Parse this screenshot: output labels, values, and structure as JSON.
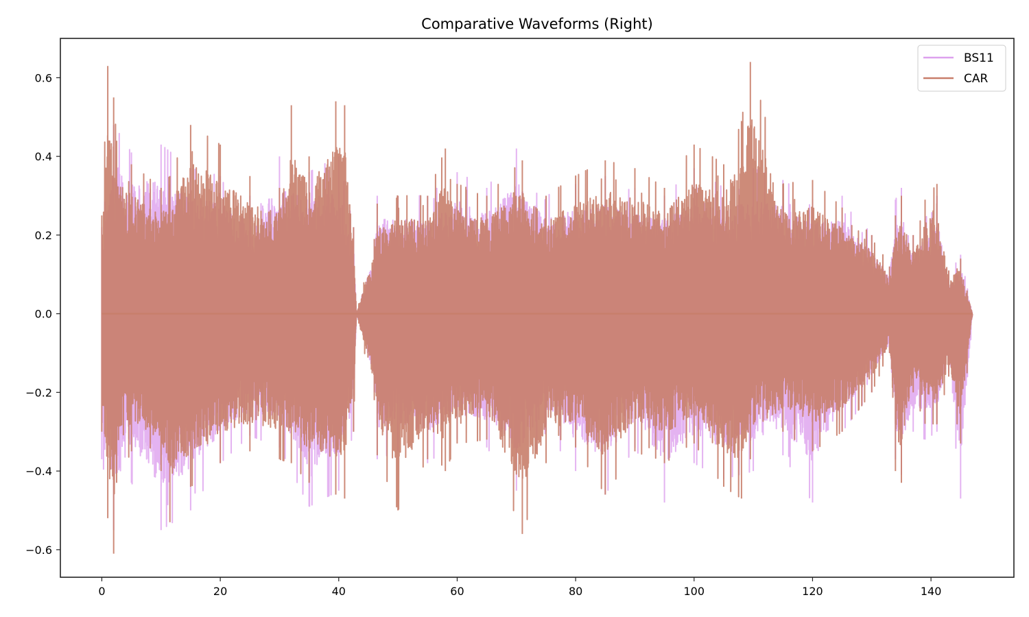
{
  "chart_data": {
    "type": "line",
    "title": "Comparative Waveforms (Right)",
    "xlabel": "",
    "ylabel": "",
    "xlim": [
      -7,
      154
    ],
    "ylim": [
      -0.67,
      0.7
    ],
    "xticks": [
      0,
      20,
      40,
      60,
      80,
      100,
      120,
      140
    ],
    "xtick_labels": [
      "0",
      "20",
      "40",
      "60",
      "80",
      "100",
      "120",
      "140"
    ],
    "yticks": [
      -0.6,
      -0.4,
      -0.2,
      0.0,
      0.2,
      0.4,
      0.6
    ],
    "ytick_labels": [
      "−0.6",
      "−0.4",
      "−0.2",
      "0.0",
      "0.2",
      "0.4",
      "0.6"
    ],
    "grid": false,
    "legend_position": "upper right",
    "series": [
      {
        "name": "BS11",
        "color": "#dda0ee",
        "alpha": 0.8,
        "description": "audio waveform amplitude over time (s), 0 to ~147",
        "envelope": {
          "x": [
            0,
            2,
            5,
            10,
            15,
            20,
            25,
            30,
            35,
            40,
            42.5,
            43,
            46,
            46.5,
            50,
            55,
            60,
            65,
            70,
            75,
            80,
            85,
            90,
            95,
            100,
            105,
            110,
            115,
            120,
            125,
            130,
            133,
            134,
            135,
            137,
            139,
            141,
            143,
            145,
            147
          ],
          "max": [
            0.22,
            0.48,
            0.41,
            0.43,
            0.37,
            0.35,
            0.3,
            0.4,
            0.36,
            0.4,
            0.22,
            0.0,
            0.19,
            0.3,
            0.3,
            0.3,
            0.36,
            0.32,
            0.42,
            0.3,
            0.33,
            0.35,
            0.32,
            0.3,
            0.37,
            0.32,
            0.37,
            0.34,
            0.29,
            0.3,
            0.2,
            0.12,
            0.29,
            0.32,
            0.2,
            0.24,
            0.3,
            0.11,
            0.15,
            0.0
          ],
          "min": [
            -0.37,
            -0.55,
            -0.43,
            -0.55,
            -0.5,
            -0.38,
            -0.31,
            -0.34,
            -0.49,
            -0.45,
            -0.3,
            0.0,
            -0.2,
            -0.37,
            -0.35,
            -0.38,
            -0.32,
            -0.34,
            -0.45,
            -0.3,
            -0.4,
            -0.46,
            -0.34,
            -0.48,
            -0.38,
            -0.42,
            -0.4,
            -0.36,
            -0.48,
            -0.3,
            -0.2,
            -0.1,
            -0.37,
            -0.41,
            -0.3,
            -0.32,
            -0.3,
            -0.15,
            -0.47,
            0.0
          ]
        }
      },
      {
        "name": "CAR",
        "color": "#c87e6a",
        "alpha": 0.9,
        "description": "audio waveform amplitude over time (s), 0 to ~147",
        "envelope": {
          "x": [
            0,
            1,
            2,
            2.5,
            5,
            10,
            11.5,
            15,
            20,
            25,
            30,
            32,
            35,
            39.5,
            41,
            42.5,
            43,
            46,
            46.5,
            50,
            55,
            58,
            60,
            65,
            71,
            75,
            80,
            85,
            90,
            95,
            100,
            105,
            108,
            109.5,
            115,
            120,
            125,
            130,
            133,
            134,
            135,
            137,
            139,
            141,
            143,
            145,
            147
          ],
          "max": [
            0.25,
            0.63,
            0.55,
            0.44,
            0.38,
            0.32,
            0.35,
            0.48,
            0.43,
            0.35,
            0.32,
            0.53,
            0.4,
            0.54,
            0.53,
            0.22,
            0.0,
            0.19,
            0.28,
            0.3,
            0.3,
            0.42,
            0.33,
            0.3,
            0.39,
            0.3,
            0.35,
            0.39,
            0.37,
            0.32,
            0.43,
            0.38,
            0.49,
            0.64,
            0.33,
            0.34,
            0.27,
            0.2,
            0.12,
            0.25,
            0.3,
            0.2,
            0.29,
            0.33,
            0.11,
            0.14,
            0.0
          ],
          "min": [
            -0.3,
            -0.52,
            -0.61,
            -0.43,
            -0.35,
            -0.4,
            -0.53,
            -0.44,
            -0.38,
            -0.35,
            -0.37,
            -0.38,
            -0.43,
            -0.46,
            -0.47,
            -0.3,
            0.0,
            -0.22,
            -0.36,
            -0.5,
            -0.37,
            -0.4,
            -0.33,
            -0.32,
            -0.56,
            -0.38,
            -0.34,
            -0.46,
            -0.35,
            -0.38,
            -0.33,
            -0.44,
            -0.47,
            -0.37,
            -0.3,
            -0.35,
            -0.3,
            -0.2,
            -0.1,
            -0.4,
            -0.43,
            -0.2,
            -0.28,
            -0.28,
            -0.16,
            -0.33,
            0.0
          ]
        }
      }
    ],
    "annotations": [
      "near-silent gap between ~43 s and ~46 s"
    ]
  }
}
